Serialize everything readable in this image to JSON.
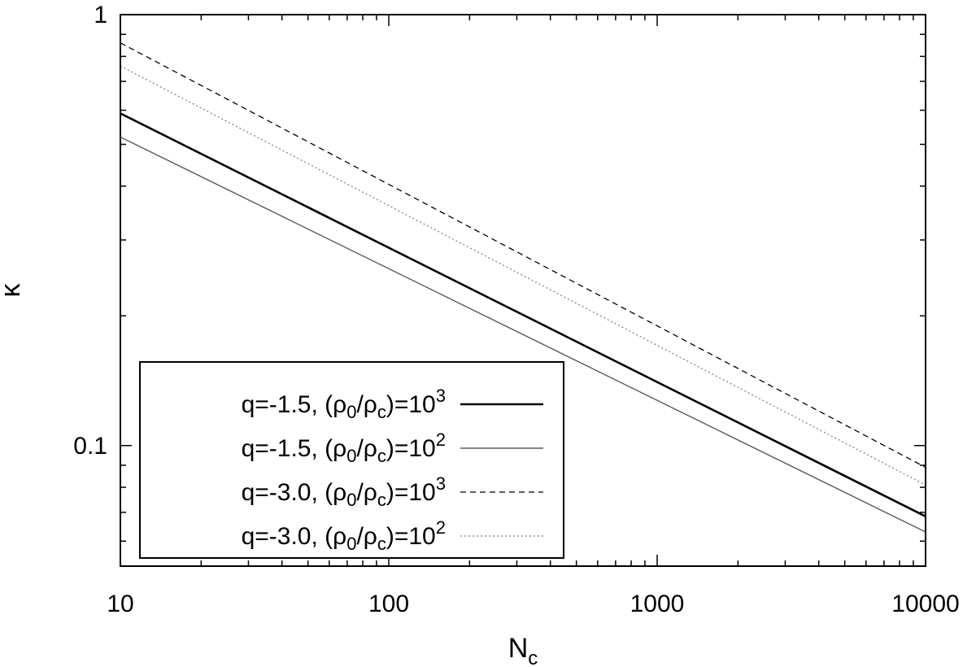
{
  "chart_data": {
    "type": "line",
    "title": "",
    "xlabel": "N_c",
    "ylabel": "κ",
    "x_scale": "log",
    "y_scale": "log",
    "xlim": [
      10,
      10000
    ],
    "ylim": [
      0.0525,
      1
    ],
    "grid": false,
    "legend_position": "bottom-left",
    "x_ticks": [
      {
        "value": 10,
        "label": "10"
      },
      {
        "value": 100,
        "label": "100"
      },
      {
        "value": 1000,
        "label": "1000"
      },
      {
        "value": 10000,
        "label": "10000"
      }
    ],
    "y_ticks": [
      {
        "value": 0.1,
        "label": "0.1"
      },
      {
        "value": 1,
        "label": "1"
      }
    ],
    "series": [
      {
        "name": "q=-1.5, (ρ0/ρc)=10^3",
        "legend": {
          "pre": "q=-1.5, (ρ",
          "sub1": "0",
          "mid": "/ρ",
          "sub2": "c",
          "post": ")=10",
          "sup": "3"
        },
        "color": "#000000",
        "dash": "solid",
        "width": 2.6,
        "x": [
          10,
          10000
        ],
        "y": [
          0.59,
          0.0685
        ]
      },
      {
        "name": "q=-1.5, (ρ0/ρc)=10^2",
        "legend": {
          "pre": "q=-1.5, (ρ",
          "sub1": "0",
          "mid": "/ρ",
          "sub2": "c",
          "post": ")=10",
          "sup": "2"
        },
        "color": "#5a5a5a",
        "dash": "solid",
        "width": 1.4,
        "x": [
          10,
          10000
        ],
        "y": [
          0.52,
          0.063
        ]
      },
      {
        "name": "q=-3.0, (ρ0/ρc)=10^3",
        "legend": {
          "pre": "q=-3.0, (ρ",
          "sub1": "0",
          "mid": "/ρ",
          "sub2": "c",
          "post": ")=10",
          "sup": "3"
        },
        "color": "#000000",
        "dash": "dashed",
        "width": 1.3,
        "x": [
          10,
          10000
        ],
        "y": [
          0.86,
          0.089
        ]
      },
      {
        "name": "q=-3.0, (ρ0/ρc)=10^2",
        "legend": {
          "pre": "q=-3.0, (ρ",
          "sub1": "0",
          "mid": "/ρ",
          "sub2": "c",
          "post": ")=10",
          "sup": "2"
        },
        "color": "#777777",
        "dash": "dotted",
        "width": 1.2,
        "x": [
          10,
          10000
        ],
        "y": [
          0.76,
          0.081
        ]
      }
    ]
  }
}
